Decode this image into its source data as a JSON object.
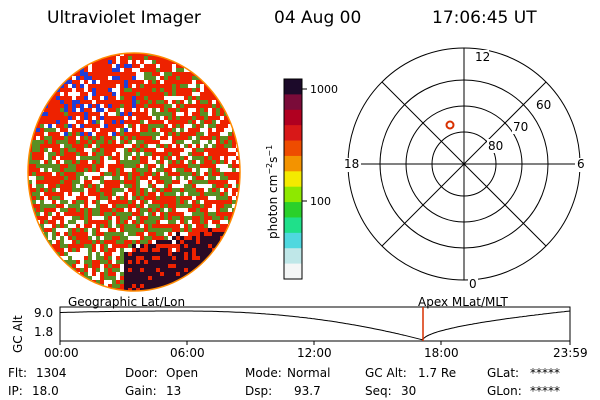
{
  "header": {
    "instrument": "Ultraviolet Imager",
    "date": "04 Aug 00",
    "time": "17:06:45 UT"
  },
  "colorbar": {
    "label_unit": "photon cm",
    "label_exp1": "−2",
    "label_s": "s",
    "label_exp2": "−1",
    "tick_high": "1000",
    "tick_mid": "100",
    "colors": [
      "#f4f6f6",
      "#bfe7e8",
      "#4fd8df",
      "#1fe08a",
      "#2ad02a",
      "#8ee800",
      "#f4ea00",
      "#f39300",
      "#ee4c00",
      "#d81818",
      "#b00020",
      "#7a0b39",
      "#1c0a2a"
    ]
  },
  "polar_plot": {
    "mlt_top": "12",
    "mlt_bottom": "0",
    "mlt_left": "18",
    "mlt_right": "6",
    "lat_60": "60",
    "lat_70": "70",
    "lat_80": "80",
    "marker_color": "#d83000"
  },
  "altitude_track": {
    "left_label": "Geographic Lat/Lon",
    "right_label": "Apex MLat/MLT",
    "axis_label": "GC Alt",
    "y_high": "9.0",
    "y_low": "1.8",
    "x_ticks": [
      "00:00",
      "06:00",
      "12:00",
      "18:00",
      "23:59"
    ],
    "current_time_color": "#d83000"
  },
  "status": {
    "flt_label": "Flt:",
    "flt_value": "1304",
    "ip_label": "IP:",
    "ip_value": "18.0",
    "door_label": "Door:",
    "door_value": "Open",
    "gain_label": "Gain:",
    "gain_value": "13",
    "mode_label": "Mode:",
    "mode_value": "Normal",
    "dsp_label": "Dsp:",
    "dsp_value": "93.7",
    "gcalt_label": "GC Alt:",
    "gcalt_value": "1.7 Re",
    "seq_label": "Seq:",
    "seq_value": "30",
    "glat_label": "GLat:",
    "glat_value": "*****",
    "glon_label": "GLon:",
    "glon_value": "*****"
  },
  "earth_image_colors": {
    "white": "#ffffff",
    "red": "#ee2200",
    "green": "#5a8f23",
    "blue": "#1f3fd8",
    "dark": "#2a0a25",
    "rim": "#ff8a00"
  }
}
